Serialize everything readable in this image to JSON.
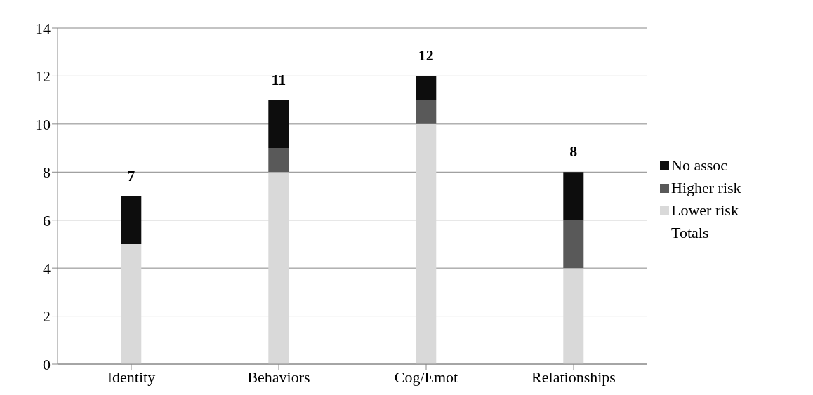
{
  "chart_data": {
    "type": "bar",
    "stacked": true,
    "categories": [
      "Identity",
      "Behaviors",
      "Cog/Emot",
      "Relationships"
    ],
    "series": [
      {
        "name": "Lower risk",
        "color": "#d9d9d9",
        "values": [
          5,
          8,
          10,
          4
        ]
      },
      {
        "name": "Higher risk",
        "color": "#595959",
        "values": [
          0,
          1,
          1,
          2
        ]
      },
      {
        "name": "No assoc",
        "color": "#0d0d0d",
        "values": [
          2,
          2,
          1,
          2
        ]
      },
      {
        "name": "Totals",
        "values": [
          null,
          null,
          null,
          null
        ]
      }
    ],
    "totals": [
      "7",
      "11",
      "12",
      "8"
    ],
    "ylim": [
      0,
      14
    ],
    "yticks": [
      0,
      2,
      4,
      6,
      8,
      10,
      12,
      14
    ],
    "grid": "y",
    "legend": "right"
  }
}
